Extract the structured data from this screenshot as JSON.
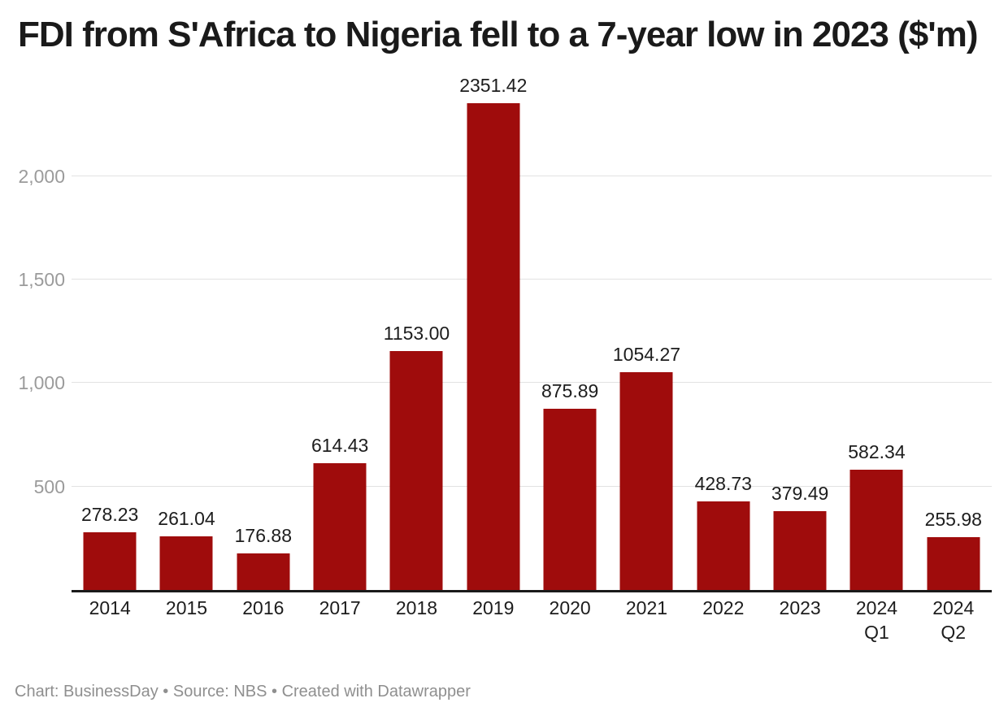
{
  "header": {
    "title": "FDI from S'Africa to Nigeria fell to a 7-year low in 2023 ($'m)"
  },
  "footer": {
    "text": "Chart: BusinessDay • Source: NBS • Created with Datawrapper"
  },
  "chart_data": {
    "type": "bar",
    "title": "FDI from S'Africa to Nigeria fell to a 7-year low in 2023 ($'m)",
    "categories": [
      "2014",
      "2015",
      "2016",
      "2017",
      "2018",
      "2019",
      "2020",
      "2021",
      "2022",
      "2023",
      "2024\nQ1",
      "2024\nQ2"
    ],
    "values": [
      278.23,
      261.04,
      176.88,
      614.43,
      1153.0,
      2351.42,
      875.89,
      1054.27,
      428.73,
      379.49,
      582.34,
      255.98
    ],
    "value_labels": [
      "278.23",
      "261.04",
      "176.88",
      "614.43",
      "1153.00",
      "2351.42",
      "875.89",
      "1054.27",
      "428.73",
      "379.49",
      "582.34",
      "255.98"
    ],
    "xlabel": "",
    "ylabel": "",
    "ylim": [
      0,
      2460
    ],
    "yticks": [
      {
        "value": 500,
        "label": "500"
      },
      {
        "value": 1000,
        "label": "1,000"
      },
      {
        "value": 1500,
        "label": "1,500"
      },
      {
        "value": 2000,
        "label": "2,000"
      }
    ],
    "grid": "horizontal",
    "legend": "none"
  },
  "colors": {
    "page_bg": "#ffffff",
    "bar": "#9f0c0c",
    "axis_line": "#1a1a1a",
    "gridline": "#e2e2e2",
    "title_text": "#1a1a1a",
    "label_text": "#1d1d1d",
    "tick_text": "#9b9b9b",
    "footer_text": "#8f8f8f"
  }
}
